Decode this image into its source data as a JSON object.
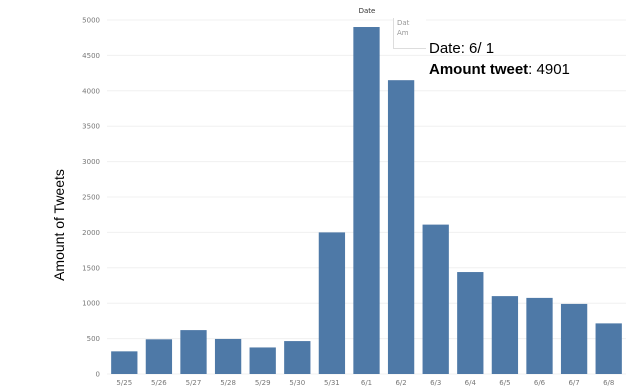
{
  "chart_data": {
    "type": "bar",
    "title": "Date",
    "ylabel": "Amount of Tweets",
    "xlabel": "",
    "categories": [
      "5/25",
      "5/26",
      "5/27",
      "5/28",
      "5/29",
      "5/30",
      "5/31",
      "6/1",
      "6/2",
      "6/3",
      "6/4",
      "6/5",
      "6/6",
      "6/7",
      "6/8"
    ],
    "values": [
      320,
      490,
      620,
      495,
      375,
      465,
      2000,
      4901,
      4150,
      2110,
      1440,
      1100,
      1075,
      990,
      715
    ],
    "ylim": [
      0,
      5000
    ],
    "yticks": [
      0,
      500,
      1000,
      1500,
      2000,
      2500,
      3000,
      3500,
      4000,
      4500,
      5000
    ],
    "bar_color": "#4e79a7",
    "grid": true
  },
  "tooltip": {
    "line1": "Dat",
    "line2": "Am"
  },
  "annotation": {
    "date_label": "Date",
    "date_value": ": 6/ 1",
    "amount_label": "Amount tweet",
    "amount_value": ": 4901"
  }
}
